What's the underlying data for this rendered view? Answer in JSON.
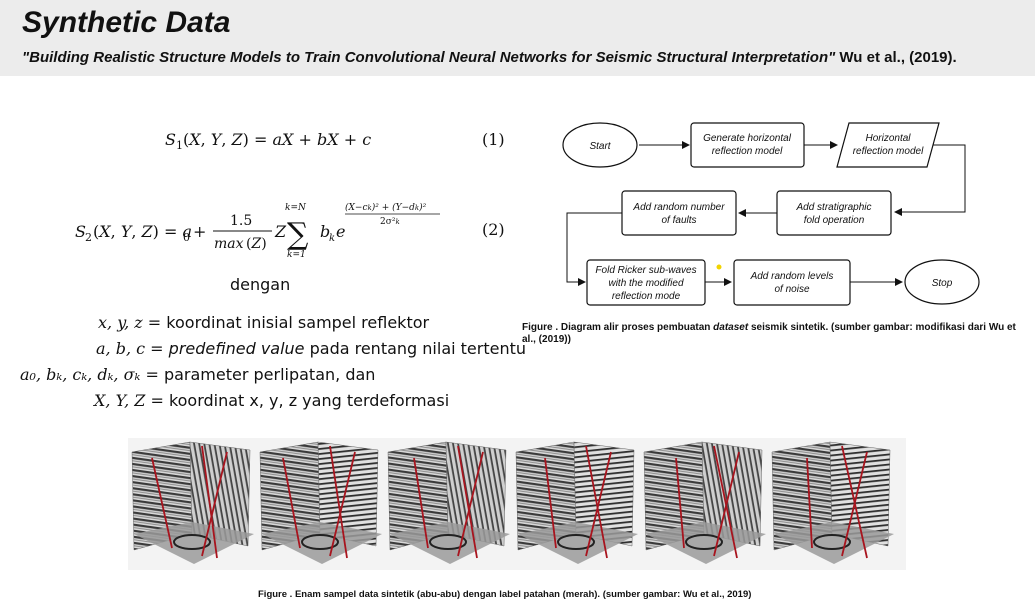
{
  "slide": {
    "title": "Synthetic Data",
    "subtitle_quote": "\"Building Realistic Structure Models to Train Convolutional Neural Networks for Seismic Structural Interpretation\"",
    "subtitle_ref": " Wu et al., (2019)."
  },
  "equations": {
    "eq1_number": "(1)",
    "eq2_number": "(2)",
    "dengan": "dengan"
  },
  "definitions": [
    {
      "lhs": "x, y, z =",
      "rhs": "koordinat inisial sampel reflektor",
      "rhs_italic": ""
    },
    {
      "lhs": "a, b, c =",
      "rhs": " pada rentang nilai tertentu",
      "rhs_italic": "predefined value"
    },
    {
      "lhs": "a₀, bₖ, cₖ, dₖ, σₖ =",
      "rhs": "parameter perlipatan, dan",
      "rhs_italic": ""
    },
    {
      "lhs": "X, Y, Z =",
      "rhs": "koordinat x, y, z yang terdeformasi",
      "rhs_italic": ""
    }
  ],
  "flowchart": {
    "start": "Start",
    "gen1": "Generate horizontal",
    "gen2": "reflection model",
    "hor1": "Horizontal",
    "hor2": "reflection model",
    "strat1": "Add stratigraphic",
    "strat2": "fold operation",
    "faults1": "Add random number",
    "faults2": "of faults",
    "fold1": "Fold Ricker sub-waves",
    "fold2": "with the modified",
    "fold3": "reflection mode",
    "noise1": "Add random levels",
    "noise2": "of noise",
    "stop": "Stop"
  },
  "captions": {
    "fig1_prefix": "Figure .  Diagram alir proses pembuatan ",
    "fig1_italic": "dataset",
    "fig1_suffix": " seismik sintetik. (sumber gambar: modifikasi dari Wu et al., (2019))",
    "fig2": "Figure . Enam sampel data sintetik (abu-abu) dengan label patahan (merah). (sumber gambar: Wu et al., 2019)"
  },
  "colors": {
    "fault_red": "#a8141e",
    "header_bg": "#ececec"
  }
}
